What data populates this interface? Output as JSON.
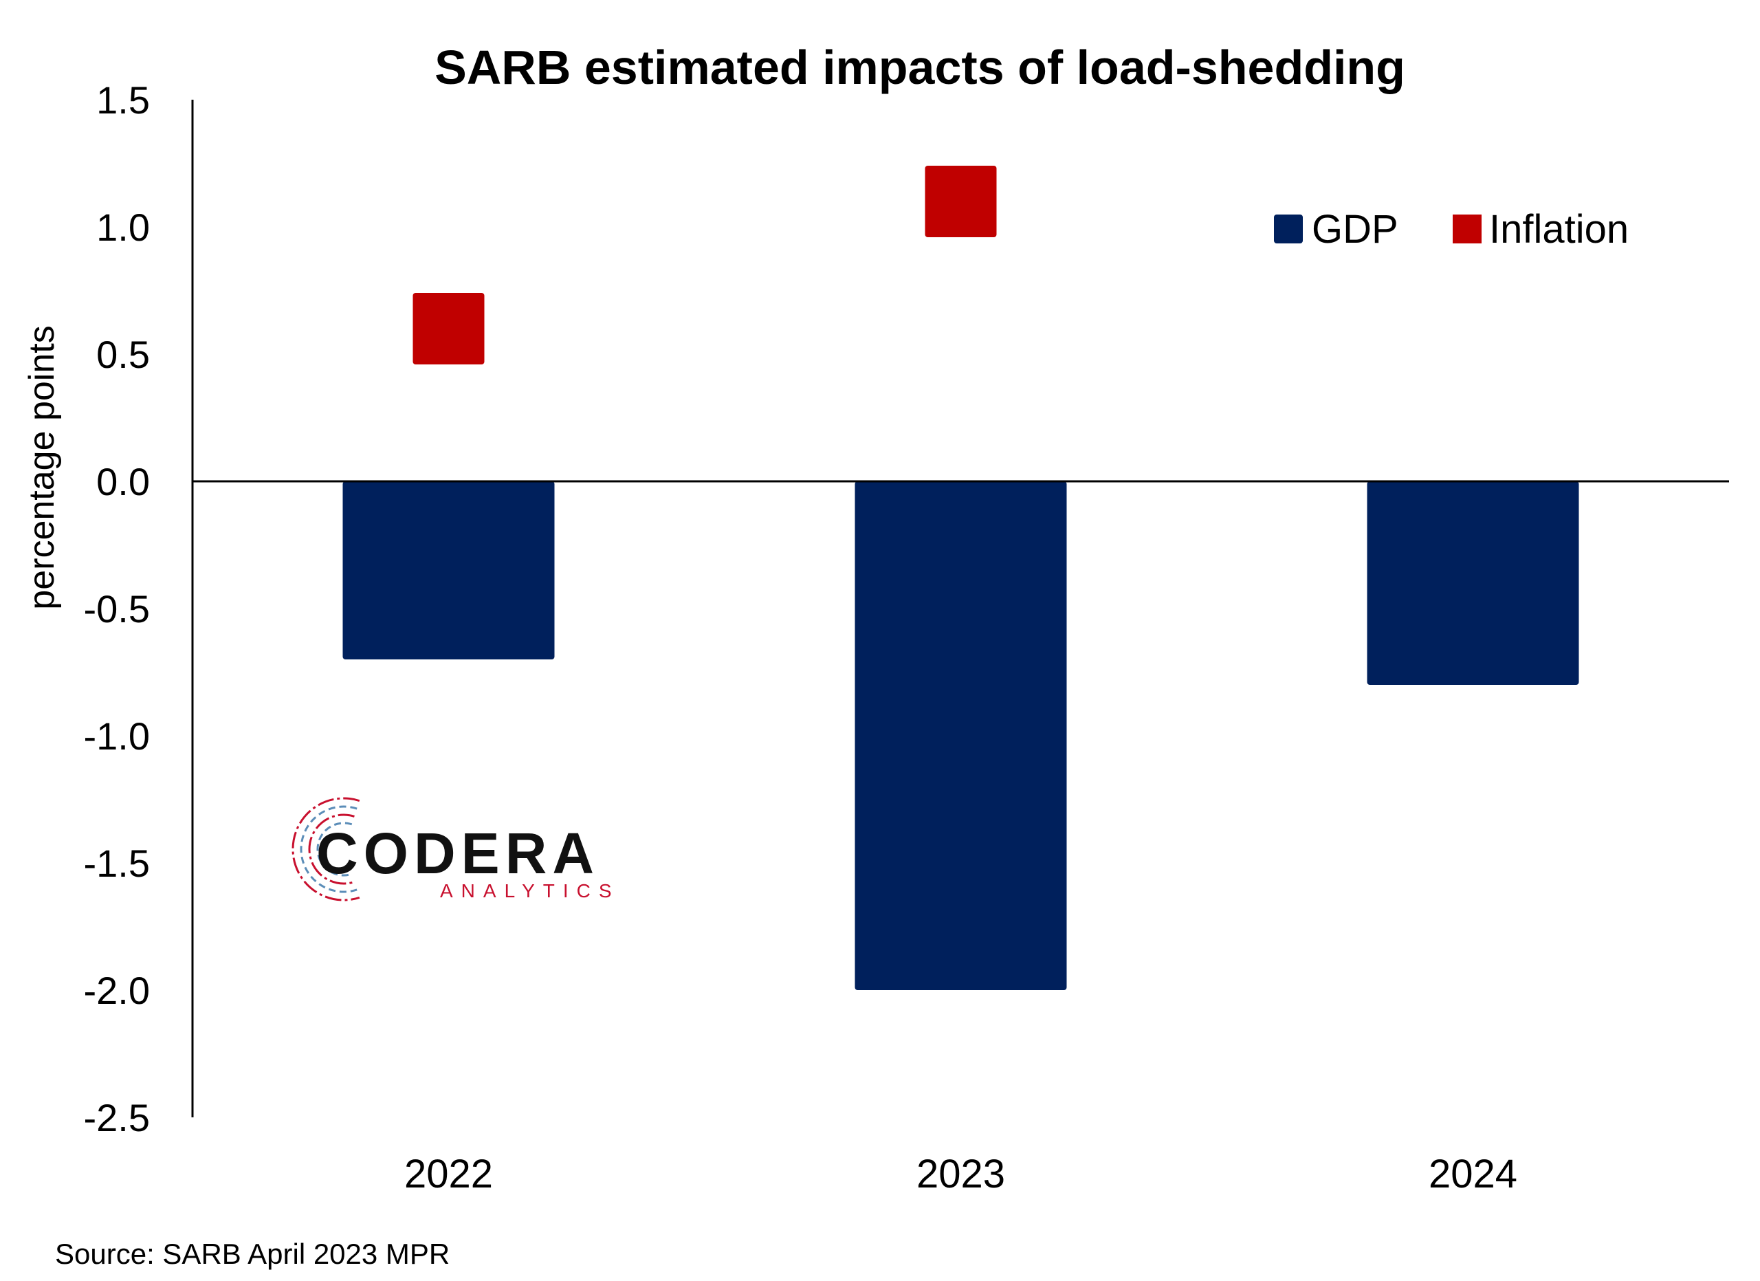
{
  "colors": {
    "gdp": "#00205C",
    "inflation": "#C00000",
    "axis": "#000000",
    "logo_red": "#C8102E",
    "logo_blue": "#5B8DB8"
  },
  "logo": {
    "name": "CODERA",
    "sub": "ANALYTICS"
  },
  "source": "Source: SARB April 2023 MPR",
  "chart_data": {
    "type": "bar",
    "title": "SARB estimated impacts of load-shedding",
    "xlabel": "",
    "ylabel": "percentage points",
    "categories": [
      "2022",
      "2023",
      "2024"
    ],
    "ylim": [
      -2.5,
      1.5
    ],
    "yticks": [
      "1.5",
      "1.0",
      "0.5",
      "0.0",
      "-0.5",
      "-1.0",
      "-1.5",
      "-2.0",
      "-2.5"
    ],
    "ytick_values": [
      1.5,
      1.0,
      0.5,
      0.0,
      -0.5,
      -1.0,
      -1.5,
      -2.0,
      -2.5
    ],
    "grid": false,
    "legend_placement": "top-right",
    "series": [
      {
        "name": "GDP",
        "type": "bar",
        "values": [
          -0.7,
          -2.0,
          -0.8
        ]
      },
      {
        "name": "Inflation",
        "type": "marker",
        "values": [
          0.6,
          1.1,
          null
        ]
      }
    ]
  }
}
